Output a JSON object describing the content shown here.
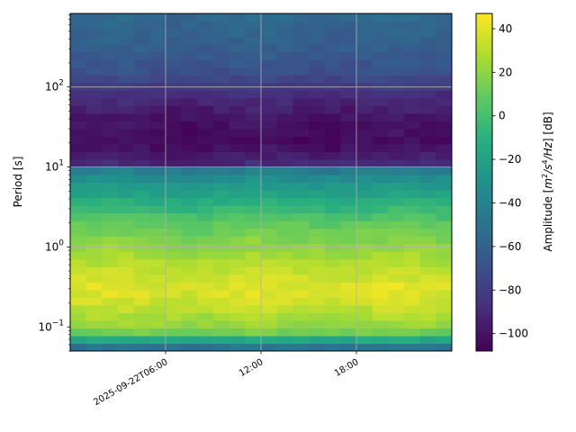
{
  "chart_data": {
    "type": "heatmap",
    "title": "",
    "xlabel": "",
    "ylabel": "Period [s]",
    "x_axis": {
      "type": "time",
      "range": [
        "2025-09-22T00:00",
        "2025-09-23T00:00"
      ],
      "ticks": [
        {
          "value": "2025-09-22T06:00",
          "label": "2025-09-22T06:00"
        },
        {
          "value": "2025-09-22T12:00",
          "label": "12:00"
        },
        {
          "value": "2025-09-22T18:00",
          "label": "18:00"
        }
      ]
    },
    "y_axis": {
      "scale": "log",
      "range": [
        0.05,
        830
      ],
      "ticks": [
        {
          "value": 0.1,
          "base": "10",
          "exp": "−1"
        },
        {
          "value": 1,
          "base": "10",
          "exp": "0"
        },
        {
          "value": 10,
          "base": "10",
          "exp": "1"
        },
        {
          "value": 100,
          "base": "10",
          "exp": "2"
        }
      ]
    },
    "grid": true,
    "colormap": "viridis",
    "colorbar": {
      "label_prefix": "Amplitude [",
      "label_m": "m",
      "label_exp1": "2",
      "label_mid": "/s",
      "label_exp2": "4",
      "label_hz": "/Hz",
      "label_suffix": "] [dB]",
      "range": [
        -108,
        47
      ],
      "ticks": [
        {
          "value": 40,
          "label": "40"
        },
        {
          "value": 20,
          "label": "20"
        },
        {
          "value": 0,
          "label": "0"
        },
        {
          "value": -20,
          "label": "−20"
        },
        {
          "value": -40,
          "label": "−40"
        },
        {
          "value": -60,
          "label": "−60"
        },
        {
          "value": -80,
          "label": "−80"
        },
        {
          "value": -100,
          "label": "−100"
        }
      ]
    },
    "time_bins_hours": 24,
    "amplitude_profile_db": [
      {
        "period": 0.05,
        "db": -62
      },
      {
        "period": 0.062,
        "db": -35
      },
      {
        "period": 0.08,
        "db": 8
      },
      {
        "period": 0.1,
        "db": 22
      },
      {
        "period": 0.2,
        "db": 35
      },
      {
        "period": 0.3,
        "db": 40
      },
      {
        "period": 0.5,
        "db": 33
      },
      {
        "period": 1,
        "db": 22
      },
      {
        "period": 2,
        "db": 8
      },
      {
        "period": 4,
        "db": -14
      },
      {
        "period": 7,
        "db": -30
      },
      {
        "period": 9.5,
        "db": -45
      },
      {
        "period": 11,
        "db": -90
      },
      {
        "period": 20,
        "db": -104
      },
      {
        "period": 40,
        "db": -100
      },
      {
        "period": 80,
        "db": -88
      },
      {
        "period": 150,
        "db": -70
      },
      {
        "period": 300,
        "db": -62
      },
      {
        "period": 830,
        "db": -55
      }
    ]
  }
}
